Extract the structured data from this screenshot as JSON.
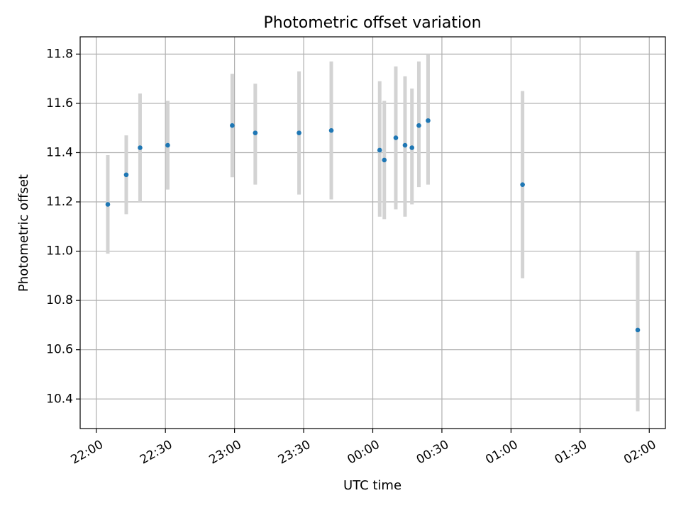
{
  "chart_data": {
    "type": "scatter",
    "title": "Photometric offset variation",
    "xlabel": "UTC time",
    "ylabel": "Photometric offset",
    "grid": true,
    "x_axis": {
      "kind": "time",
      "range": [
        "21:53",
        "02:07"
      ],
      "ticks": [
        "22:00",
        "22:30",
        "23:00",
        "23:30",
        "00:00",
        "00:30",
        "01:00",
        "01:30",
        "02:00"
      ],
      "tick_label_rotation": "slanted"
    },
    "y_axis": {
      "range": [
        10.28,
        11.87
      ],
      "ticks": [
        "10.4",
        "10.6",
        "10.8",
        "11.0",
        "11.2",
        "11.4",
        "11.6",
        "11.8"
      ]
    },
    "series": [
      {
        "marker_color": "#1f77b4",
        "errorbar_color": "#d3d3d3",
        "points": [
          {
            "x": "22:05",
            "y": 11.19,
            "ylow": 10.99,
            "yhigh": 11.39
          },
          {
            "x": "22:13",
            "y": 11.31,
            "ylow": 11.15,
            "yhigh": 11.47
          },
          {
            "x": "22:19",
            "y": 11.42,
            "ylow": 11.2,
            "yhigh": 11.64
          },
          {
            "x": "22:31",
            "y": 11.43,
            "ylow": 11.25,
            "yhigh": 11.61
          },
          {
            "x": "22:59",
            "y": 11.51,
            "ylow": 11.3,
            "yhigh": 11.72
          },
          {
            "x": "23:09",
            "y": 11.48,
            "ylow": 11.27,
            "yhigh": 11.68
          },
          {
            "x": "23:28",
            "y": 11.48,
            "ylow": 11.23,
            "yhigh": 11.73
          },
          {
            "x": "23:42",
            "y": 11.49,
            "ylow": 11.21,
            "yhigh": 11.77
          },
          {
            "x": "00:03",
            "y": 11.41,
            "ylow": 11.14,
            "yhigh": 11.69
          },
          {
            "x": "00:05",
            "y": 11.37,
            "ylow": 11.13,
            "yhigh": 11.61
          },
          {
            "x": "00:10",
            "y": 11.46,
            "ylow": 11.17,
            "yhigh": 11.75
          },
          {
            "x": "00:14",
            "y": 11.43,
            "ylow": 11.14,
            "yhigh": 11.71
          },
          {
            "x": "00:17",
            "y": 11.42,
            "ylow": 11.19,
            "yhigh": 11.66
          },
          {
            "x": "00:20",
            "y": 11.51,
            "ylow": 11.26,
            "yhigh": 11.77
          },
          {
            "x": "00:24",
            "y": 11.53,
            "ylow": 11.27,
            "yhigh": 11.8
          },
          {
            "x": "01:05",
            "y": 11.27,
            "ylow": 10.89,
            "yhigh": 11.65
          },
          {
            "x": "01:55",
            "y": 10.68,
            "ylow": 10.35,
            "yhigh": 11.0
          }
        ]
      }
    ]
  }
}
